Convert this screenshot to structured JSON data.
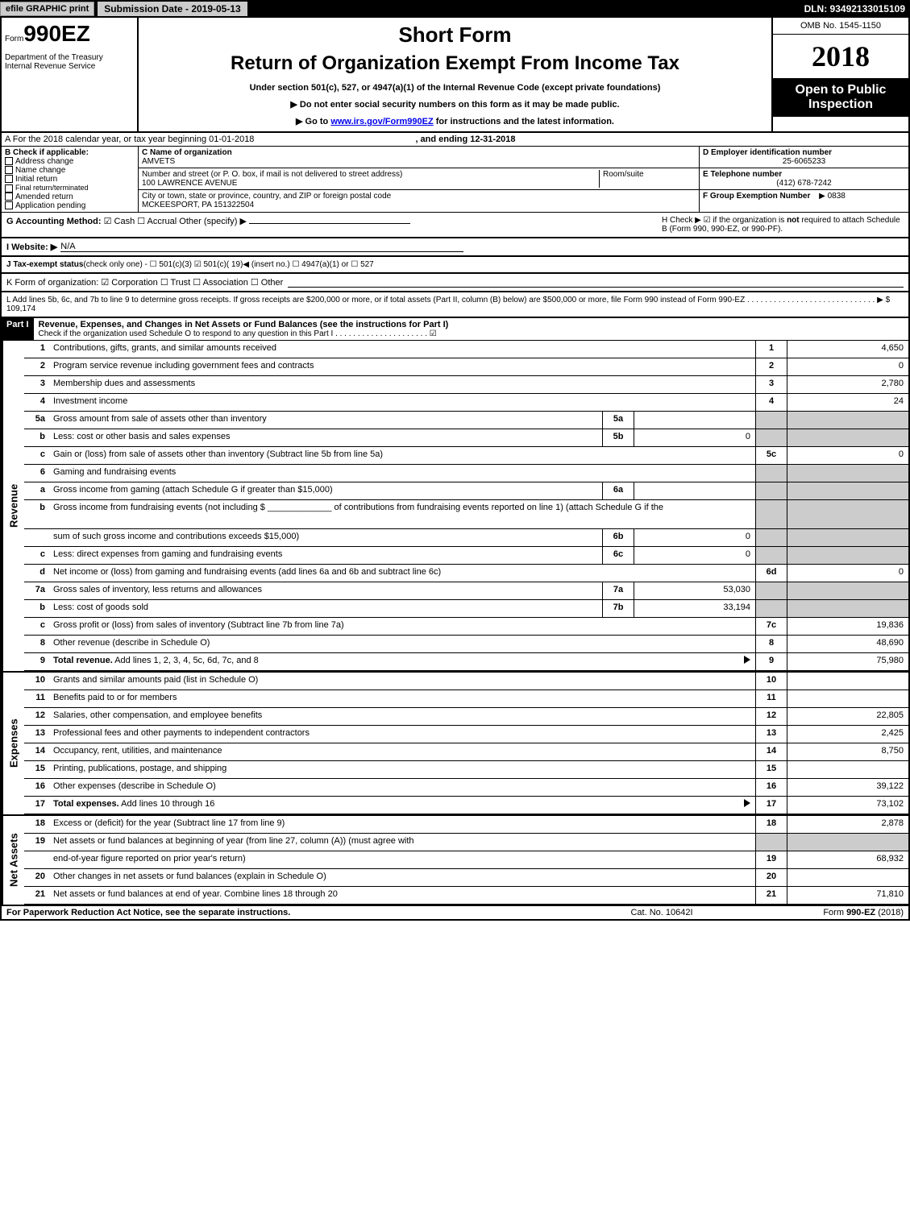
{
  "topbar": {
    "efile_btn": "efile GRAPHIC print",
    "submission_date_label": "Submission Date - 2019-05-13",
    "dln": "DLN: 93492133015109"
  },
  "header": {
    "form_prefix": "Form",
    "form_number": "990EZ",
    "short_form": "Short Form",
    "title": "Return of Organization Exempt From Income Tax",
    "subtitle": "Under section 501(c), 527, or 4947(a)(1) of the Internal Revenue Code (except private foundations)",
    "instr1": "▶ Do not enter social security numbers on this form as it may be made public.",
    "instr2_prefix": "▶ Go to ",
    "instr2_link": "www.irs.gov/Form990EZ",
    "instr2_suffix": " for instructions and the latest information.",
    "dept1": "Department of the Treasury",
    "dept2": "Internal Revenue Service",
    "omb": "OMB No. 1545-1150",
    "year": "2018",
    "open_public": "Open to Public Inspection"
  },
  "section_a": {
    "a_text": "A  For the 2018 calendar year, or tax year beginning 01-01-2018",
    "a_ending": ", and ending 12-31-2018",
    "b_label": "B  Check if applicable:",
    "checks": [
      "Address change",
      "Name change",
      "Initial return",
      "Final return/terminated",
      "Amended return",
      "Application pending"
    ],
    "c_label": "C Name of organization",
    "c_name": "AMVETS",
    "c_addr_label": "Number and street (or P. O. box, if mail is not delivered to street address)",
    "c_addr": "100 LAWRENCE AVENUE",
    "c_room": "Room/suite",
    "c_city_label": "City or town, state or province, country, and ZIP or foreign postal code",
    "c_city": "MCKEESPORT, PA  151322504",
    "d_label": "D Employer identification number",
    "d_ein": "25-6065233",
    "e_label": "E Telephone number",
    "e_phone": "(412) 678-7242",
    "f_label": "F Group Exemption Number",
    "f_num": "▶ 0838"
  },
  "section_g": {
    "g_label": "G Accounting Method:",
    "g_opts": "☑ Cash   ☐ Accrual   Other (specify) ▶",
    "h_label": "H  Check ▶ ☑ if the organization is ",
    "h_bold": "not",
    "h_rest": " required to attach Schedule B (Form 990, 990-EZ, or 990-PF).",
    "i_label": "I Website: ▶",
    "i_val": "N/A",
    "j_label": "J Tax-exempt status",
    "j_text": " (check only one) - ☐ 501(c)(3) ☑ 501(c)( 19)◀ (insert no.) ☐ 4947(a)(1) or ☐ 527",
    "k_label": "K Form of organization:  ☑ Corporation   ☐ Trust   ☐ Association   ☐ Other",
    "l_text": "L Add lines 5b, 6c, and 7b to line 9 to determine gross receipts. If gross receipts are $200,000 or more, or if total assets (Part II, column (B) below) are $500,000 or more, file Form 990 instead of Form 990-EZ  .  .  .  .  .  .  .  .  .  .  .  .  .  .  .  .  .  .  .  .  .  .  .  .  .  .  .  .  .  ▶ $ 109,174"
  },
  "part1": {
    "header_label": "Part I",
    "header_text": "Revenue, Expenses, and Changes in Net Assets or Fund Balances (see the instructions for Part I)",
    "header_sub": "Check if the organization used Schedule O to respond to any question in this Part I .  .  .  .  .  .  .  .  .  .  .  .  .  .  .  .  .  .  .  .  .  ☑"
  },
  "revenue": {
    "side_label": "Revenue",
    "rows": [
      {
        "n": "1",
        "d": "Contributions, gifts, grants, and similar amounts received",
        "rn": "1",
        "rv": "4,650"
      },
      {
        "n": "2",
        "d": "Program service revenue including government fees and contracts",
        "rn": "2",
        "rv": "0"
      },
      {
        "n": "3",
        "d": "Membership dues and assessments",
        "rn": "3",
        "rv": "2,780"
      },
      {
        "n": "4",
        "d": "Investment income",
        "rn": "4",
        "rv": "24"
      },
      {
        "n": "5a",
        "d": "Gross amount from sale of assets other than inventory",
        "mn": "5a",
        "mv": "",
        "shaded": true
      },
      {
        "n": "b",
        "d": "Less: cost or other basis and sales expenses",
        "mn": "5b",
        "mv": "0",
        "shaded": true
      },
      {
        "n": "c",
        "d": "Gain or (loss) from sale of assets other than inventory (Subtract line 5b from line 5a)",
        "rn": "5c",
        "rv": "0"
      },
      {
        "n": "6",
        "d": "Gaming and fundraising events",
        "shaded_right": true
      },
      {
        "n": "a",
        "d": "Gross income from gaming (attach Schedule G if greater than $15,000)",
        "mn": "6a",
        "mv": "",
        "shaded": true
      },
      {
        "n": "b",
        "d": "Gross income from fundraising events (not including $ _____________ of contributions from fundraising events reported on line 1) (attach Schedule G if the",
        "shaded": true,
        "tall": true
      },
      {
        "n": "",
        "d": "sum of such gross income and contributions exceeds $15,000)",
        "mn": "6b",
        "mv": "0",
        "shaded": true
      },
      {
        "n": "c",
        "d": "Less: direct expenses from gaming and fundraising events",
        "mn": "6c",
        "mv": "0",
        "shaded": true
      },
      {
        "n": "d",
        "d": "Net income or (loss) from gaming and fundraising events (add lines 6a and 6b and subtract line 6c)",
        "rn": "6d",
        "rv": "0"
      },
      {
        "n": "7a",
        "d": "Gross sales of inventory, less returns and allowances",
        "mn": "7a",
        "mv": "53,030",
        "shaded": true
      },
      {
        "n": "b",
        "d": "Less: cost of goods sold",
        "mn": "7b",
        "mv": "33,194",
        "shaded": true
      },
      {
        "n": "c",
        "d": "Gross profit or (loss) from sales of inventory (Subtract line 7b from line 7a)",
        "rn": "7c",
        "rv": "19,836"
      },
      {
        "n": "8",
        "d": "Other revenue (describe in Schedule O)",
        "rn": "8",
        "rv": "48,690"
      },
      {
        "n": "9",
        "d": "Total revenue. Add lines 1, 2, 3, 4, 5c, 6d, 7c, and 8",
        "bold": true,
        "arrow": true,
        "rn": "9",
        "rv": "75,980"
      }
    ]
  },
  "expenses": {
    "side_label": "Expenses",
    "rows": [
      {
        "n": "10",
        "d": "Grants and similar amounts paid (list in Schedule O)",
        "rn": "10",
        "rv": ""
      },
      {
        "n": "11",
        "d": "Benefits paid to or for members",
        "rn": "11",
        "rv": ""
      },
      {
        "n": "12",
        "d": "Salaries, other compensation, and employee benefits",
        "rn": "12",
        "rv": "22,805"
      },
      {
        "n": "13",
        "d": "Professional fees and other payments to independent contractors",
        "rn": "13",
        "rv": "2,425"
      },
      {
        "n": "14",
        "d": "Occupancy, rent, utilities, and maintenance",
        "rn": "14",
        "rv": "8,750"
      },
      {
        "n": "15",
        "d": "Printing, publications, postage, and shipping",
        "rn": "15",
        "rv": ""
      },
      {
        "n": "16",
        "d": "Other expenses (describe in Schedule O)",
        "rn": "16",
        "rv": "39,122"
      },
      {
        "n": "17",
        "d": "Total expenses. Add lines 10 through 16",
        "bold": true,
        "arrow": true,
        "rn": "17",
        "rv": "73,102"
      }
    ]
  },
  "netassets": {
    "side_label": "Net Assets",
    "rows": [
      {
        "n": "18",
        "d": "Excess or (deficit) for the year (Subtract line 17 from line 9)",
        "rn": "18",
        "rv": "2,878"
      },
      {
        "n": "19",
        "d": "Net assets or fund balances at beginning of year (from line 27, column (A)) (must agree with",
        "shaded_right": true
      },
      {
        "n": "",
        "d": "end-of-year figure reported on prior year's return)",
        "rn": "19",
        "rv": "68,932"
      },
      {
        "n": "20",
        "d": "Other changes in net assets or fund balances (explain in Schedule O)",
        "rn": "20",
        "rv": ""
      },
      {
        "n": "21",
        "d": "Net assets or fund balances at end of year. Combine lines 18 through 20",
        "rn": "21",
        "rv": "71,810"
      }
    ]
  },
  "footer": {
    "left": "For Paperwork Reduction Act Notice, see the separate instructions.",
    "mid": "Cat. No. 10642I",
    "right": "Form 990-EZ (2018)"
  }
}
